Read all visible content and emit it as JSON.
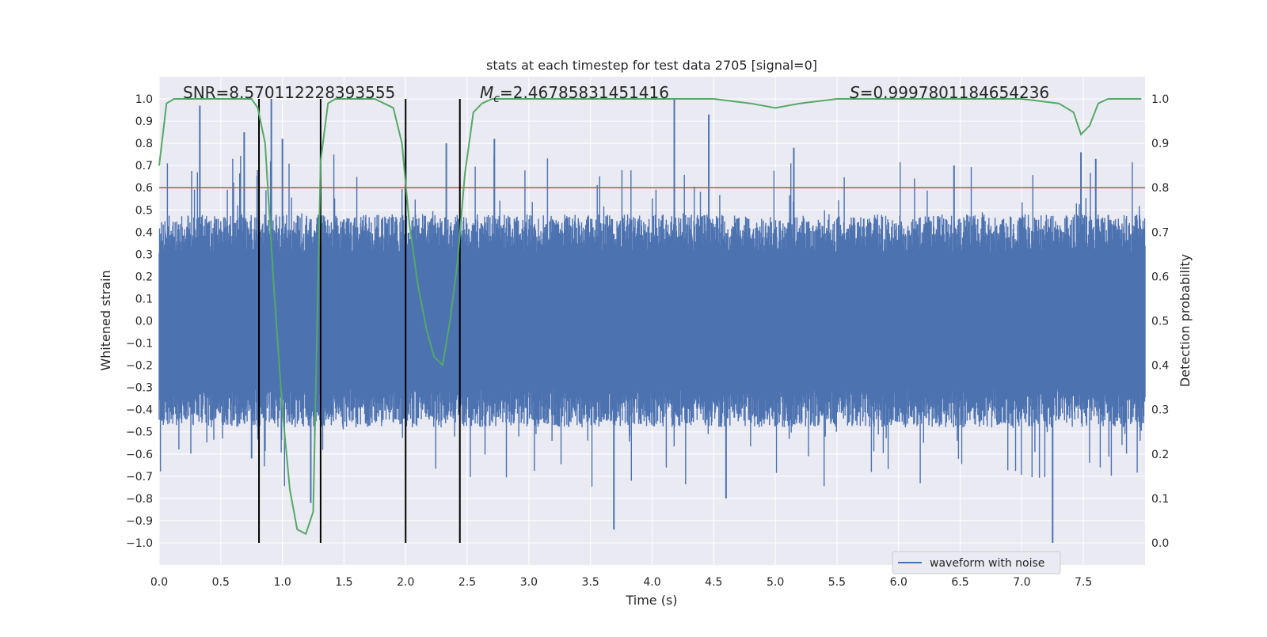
{
  "chart_data": {
    "type": "line",
    "title": "stats at each timestep for test data 2705 [signal=0]",
    "xlabel": "Time (s)",
    "ylabel_left": "Whitened strain",
    "ylabel_right": "Detection probability",
    "xlim": [
      0.0,
      8.0
    ],
    "ylim_left": [
      -1.1,
      1.1
    ],
    "ylim_right": [
      -0.05,
      1.05
    ],
    "x_ticks": [
      "0.0",
      "0.5",
      "1.0",
      "1.5",
      "2.0",
      "2.5",
      "3.0",
      "3.5",
      "4.0",
      "4.5",
      "5.0",
      "5.5",
      "6.0",
      "6.5",
      "7.0",
      "7.5"
    ],
    "y_left_ticks": [
      "−1.0",
      "−0.9",
      "−0.8",
      "−0.7",
      "−0.6",
      "−0.5",
      "−0.4",
      "−0.3",
      "−0.2",
      "−0.1",
      "0.0",
      "0.1",
      "0.2",
      "0.3",
      "0.4",
      "0.5",
      "0.6",
      "0.7",
      "0.8",
      "0.9",
      "1.0"
    ],
    "y_right_ticks": [
      "0.0",
      "0.1",
      "0.2",
      "0.3",
      "0.4",
      "0.5",
      "0.6",
      "0.7",
      "0.8",
      "0.9",
      "1.0"
    ],
    "grid": true,
    "annotations": {
      "snr": "SNR=8.570112228393555",
      "mc_symbol": "M",
      "mc_sub": "c",
      "mc_value": "=2.46785831451416",
      "s_symbol": "S",
      "s_value": "=0.9997801184654236"
    },
    "threshold": {
      "value": 0.8,
      "axis": "right",
      "color": "#c44e52"
    },
    "vertical_lines": [
      0.81,
      1.31,
      2.0,
      2.44
    ],
    "legend": {
      "entries": [
        "waveform with noise"
      ],
      "location": "lower-right"
    },
    "colors": {
      "waveform": "#4c72b0",
      "probability": "#55a868",
      "threshold": "#c44e52",
      "vlines": "#000000",
      "axes_bg": "#eaeaf2",
      "grid": "#ffffff"
    },
    "series": [
      {
        "name": "waveform with noise",
        "axis": "left",
        "envelope_typical": [
          -0.4,
          0.4
        ],
        "peaks": [
          [
            0.33,
            0.97
          ],
          [
            0.91,
            1.0
          ],
          [
            0.69,
            0.85
          ],
          [
            0.75,
            -0.62
          ],
          [
            1.0,
            0.82
          ],
          [
            1.23,
            -0.82
          ],
          [
            2.0,
            0.82
          ],
          [
            2.33,
            0.8
          ],
          [
            2.72,
            0.82
          ],
          [
            3.69,
            -0.94
          ],
          [
            4.18,
            1.0
          ],
          [
            4.46,
            0.93
          ],
          [
            4.6,
            -0.8
          ],
          [
            5.15,
            0.78
          ],
          [
            6.45,
            0.7
          ],
          [
            7.25,
            -1.0
          ],
          [
            7.48,
            0.76
          ],
          [
            7.6,
            0.73
          ]
        ]
      },
      {
        "name": "",
        "axis": "right",
        "x": [
          0.0,
          0.06,
          0.12,
          0.2,
          0.4,
          0.6,
          0.75,
          0.8,
          0.86,
          0.93,
          1.0,
          1.06,
          1.12,
          1.19,
          1.25,
          1.31,
          1.37,
          1.43,
          1.5,
          1.6,
          1.75,
          1.9,
          1.97,
          2.03,
          2.1,
          2.17,
          2.23,
          2.3,
          2.36,
          2.42,
          2.48,
          2.55,
          2.62,
          2.7,
          3.0,
          3.5,
          3.9,
          4.2,
          4.5,
          4.8,
          5.0,
          5.2,
          5.5,
          6.0,
          6.5,
          7.0,
          7.3,
          7.42,
          7.48,
          7.55,
          7.62,
          7.7,
          7.8,
          7.97
        ],
        "values": [
          0.85,
          0.99,
          1.0,
          1.0,
          1.0,
          1.0,
          1.0,
          0.98,
          0.9,
          0.58,
          0.3,
          0.12,
          0.03,
          0.02,
          0.07,
          0.86,
          0.99,
          1.0,
          1.0,
          1.0,
          1.0,
          0.98,
          0.9,
          0.72,
          0.58,
          0.48,
          0.42,
          0.4,
          0.5,
          0.63,
          0.83,
          0.97,
          0.99,
          1.0,
          1.0,
          1.0,
          1.0,
          1.0,
          1.0,
          0.99,
          0.98,
          0.99,
          1.0,
          1.0,
          1.0,
          1.0,
          0.99,
          0.97,
          0.92,
          0.94,
          0.99,
          1.0,
          1.0,
          1.0
        ]
      }
    ]
  }
}
